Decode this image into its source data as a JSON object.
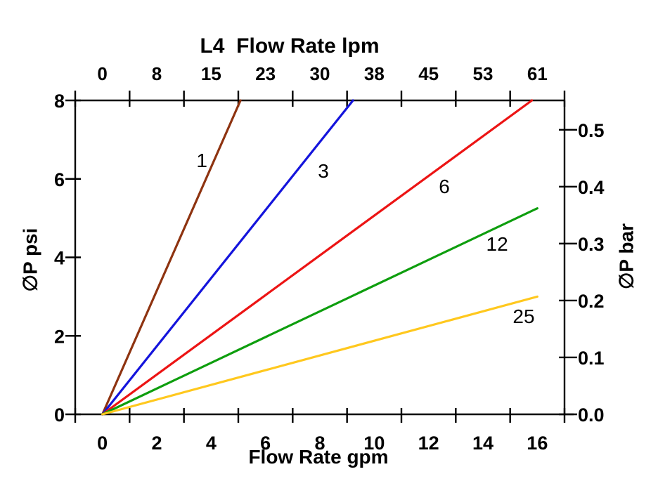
{
  "chart_data": {
    "type": "line",
    "title": "L4  Flow Rate lpm",
    "xlabel_bottom": "Flow Rate gpm",
    "ylabel_left": "∅P psi",
    "ylabel_right": "∅P bar",
    "x_axis_bottom": {
      "unit": "gpm",
      "tick_values": [
        0,
        2,
        4,
        6,
        8,
        10,
        12,
        14,
        16
      ],
      "tick_labels": [
        "0",
        "2",
        "4",
        "6",
        "8",
        "10",
        "12",
        "14",
        "16"
      ],
      "range": [
        0,
        16
      ],
      "ticks_between_categories": true
    },
    "x_axis_top": {
      "unit": "lpm",
      "tick_labels": [
        "0",
        "8",
        "15",
        "23",
        "30",
        "38",
        "45",
        "53",
        "61"
      ],
      "label_positions_gpm": [
        0,
        2,
        4,
        6,
        8,
        10,
        12,
        14,
        16
      ]
    },
    "y_axis_left": {
      "unit": "psi",
      "tick_values": [
        0,
        2,
        4,
        6,
        8
      ],
      "tick_labels": [
        "0",
        "2",
        "4",
        "6",
        "8"
      ],
      "range": [
        0,
        8
      ]
    },
    "y_axis_right": {
      "unit": "bar",
      "tick_labels": [
        "0.0",
        "0.1",
        "0.2",
        "0.3",
        "0.4",
        "0.5"
      ],
      "tick_values_psi": [
        0,
        1.4504,
        2.9008,
        4.3511,
        5.8015,
        7.2519
      ]
    },
    "grid": false,
    "legend": "inline curve labels",
    "series": [
      {
        "label": "1",
        "color": "#8E3310",
        "points_gpm_psi": [
          [
            0,
            0
          ],
          [
            5.08,
            8
          ]
        ],
        "label_pos_gpm_psi": [
          3.66,
          6.48
        ]
      },
      {
        "label": "3",
        "color": "#1414DC",
        "points_gpm_psi": [
          [
            0,
            0
          ],
          [
            9.22,
            8
          ]
        ],
        "label_pos_gpm_psi": [
          8.13,
          6.21
        ]
      },
      {
        "label": "6",
        "color": "#EC1414",
        "points_gpm_psi": [
          [
            0,
            0
          ],
          [
            15.8,
            8
          ]
        ],
        "label_pos_gpm_psi": [
          12.58,
          5.82
        ]
      },
      {
        "label": "12",
        "color": "#0E9E0E",
        "points_gpm_psi": [
          [
            0,
            0
          ],
          [
            16,
            5.25
          ]
        ],
        "label_pos_gpm_psi": [
          14.52,
          4.35
        ]
      },
      {
        "label": "25",
        "color": "#FFC81E",
        "points_gpm_psi": [
          [
            0,
            0
          ],
          [
            16,
            3.0
          ]
        ],
        "label_pos_gpm_psi": [
          15.5,
          2.51
        ]
      }
    ]
  }
}
